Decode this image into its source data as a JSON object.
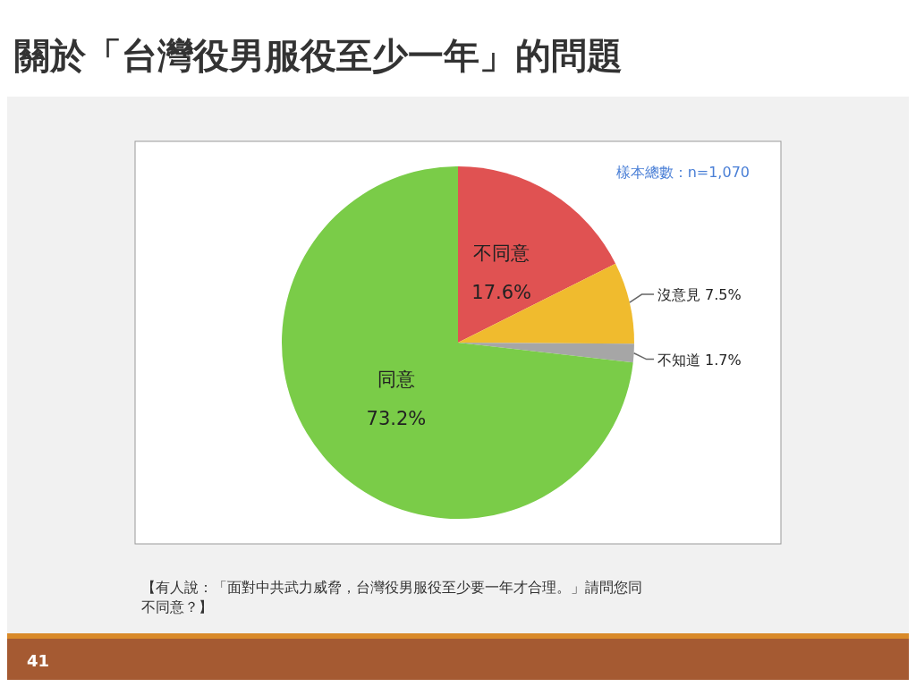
{
  "chart_data": {
    "type": "pie",
    "title": "關於「台灣役男服役至少一年」的問題",
    "categories": [
      "不同意",
      "沒意見",
      "不知道",
      "同意"
    ],
    "values": [
      17.6,
      7.5,
      1.7,
      73.2
    ],
    "value_labels": [
      "17.6%",
      "7.5%",
      "1.7%",
      "73.2%"
    ],
    "colors": [
      "#e05252",
      "#f0bb2e",
      "#a6a6a6",
      "#7acc48"
    ],
    "annotations": [
      "樣本總數：n=1,070",
      "【有人說：「面對中共武力威脅，台灣役男服役至少要一年才合理。」請問您同不同意？】",
      "41"
    ]
  }
}
